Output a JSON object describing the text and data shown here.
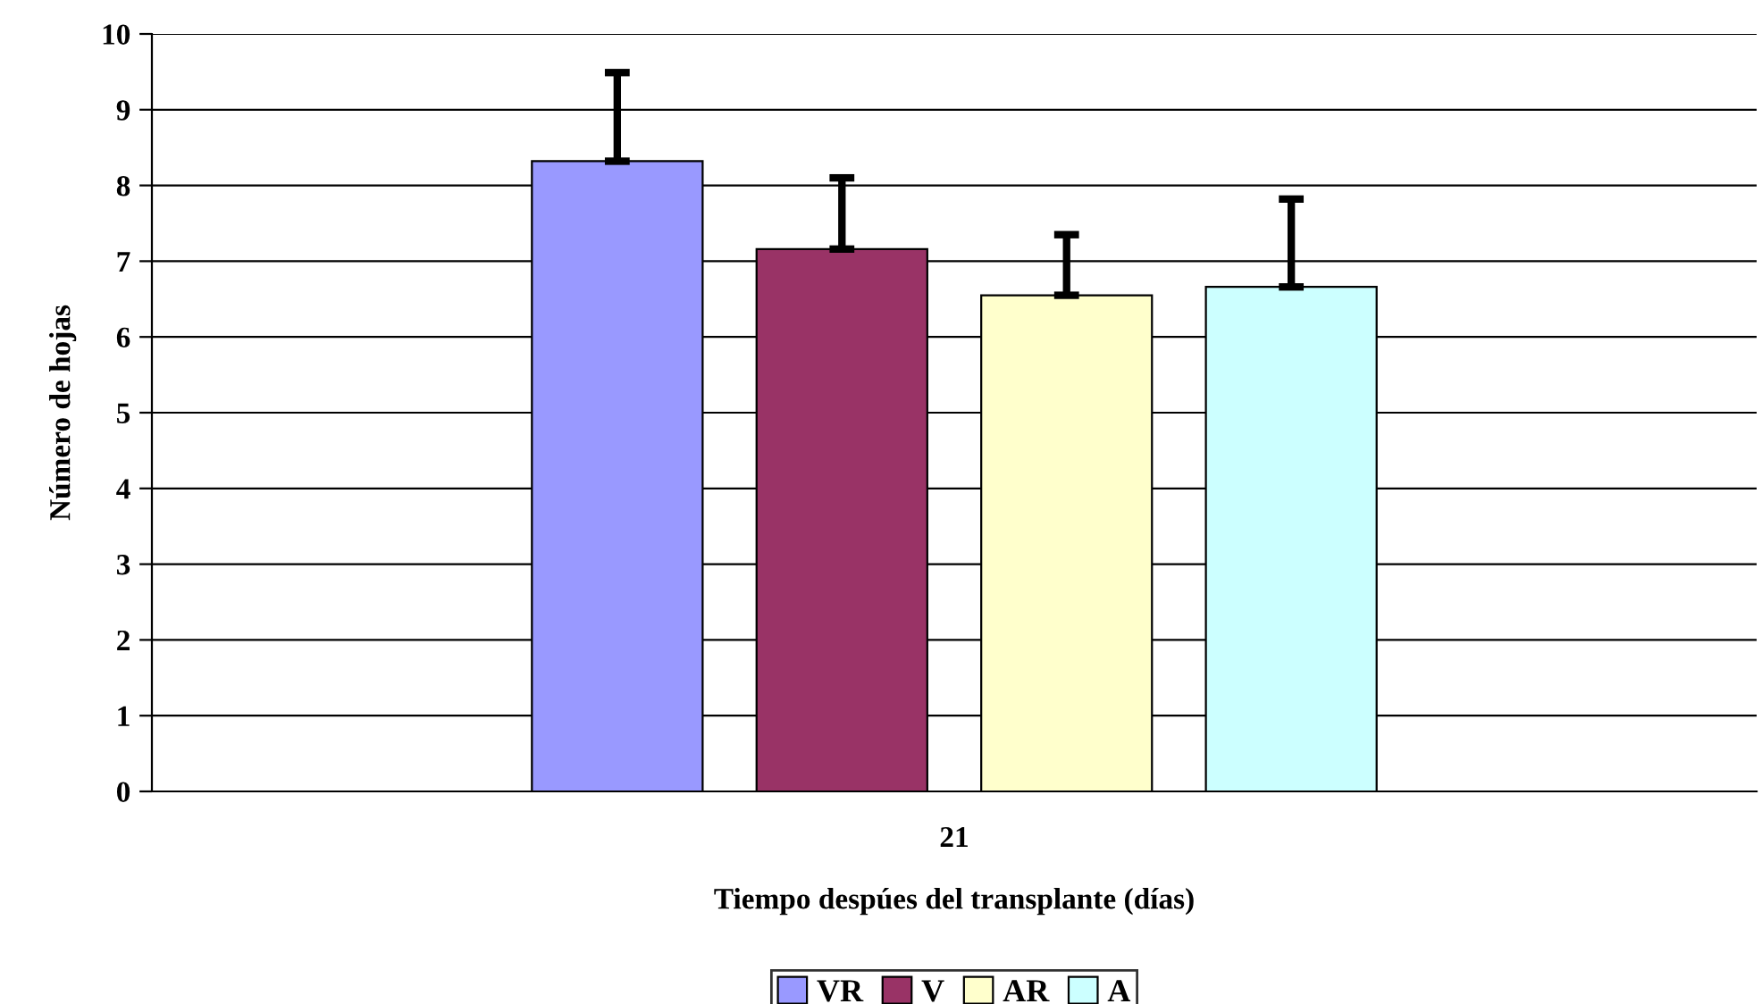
{
  "chart_data": {
    "type": "bar",
    "xlabel": "Tiempo despúes del transplante (días)",
    "ylabel": "Número de hojas",
    "categories": [
      "21"
    ],
    "series": [
      {
        "name": "VR",
        "color": "#9999ff",
        "values": [
          8.32
        ],
        "errors": [
          [
            8.32,
            9.49
          ]
        ]
      },
      {
        "name": "V",
        "color": "#993366",
        "values": [
          7.16
        ],
        "errors": [
          [
            7.16,
            8.1
          ]
        ]
      },
      {
        "name": "AR",
        "color": "#ffffcc",
        "values": [
          6.55
        ],
        "errors": [
          [
            6.55,
            7.35
          ]
        ]
      },
      {
        "name": "A",
        "color": "#ccffff",
        "values": [
          6.66
        ],
        "errors": [
          [
            6.66,
            7.82
          ]
        ]
      }
    ],
    "ylim": [
      0,
      10
    ],
    "yticks": [
      0,
      1,
      2,
      3,
      4,
      5,
      6,
      7,
      8,
      9,
      10
    ],
    "grid": "y",
    "legend": "bottom"
  }
}
